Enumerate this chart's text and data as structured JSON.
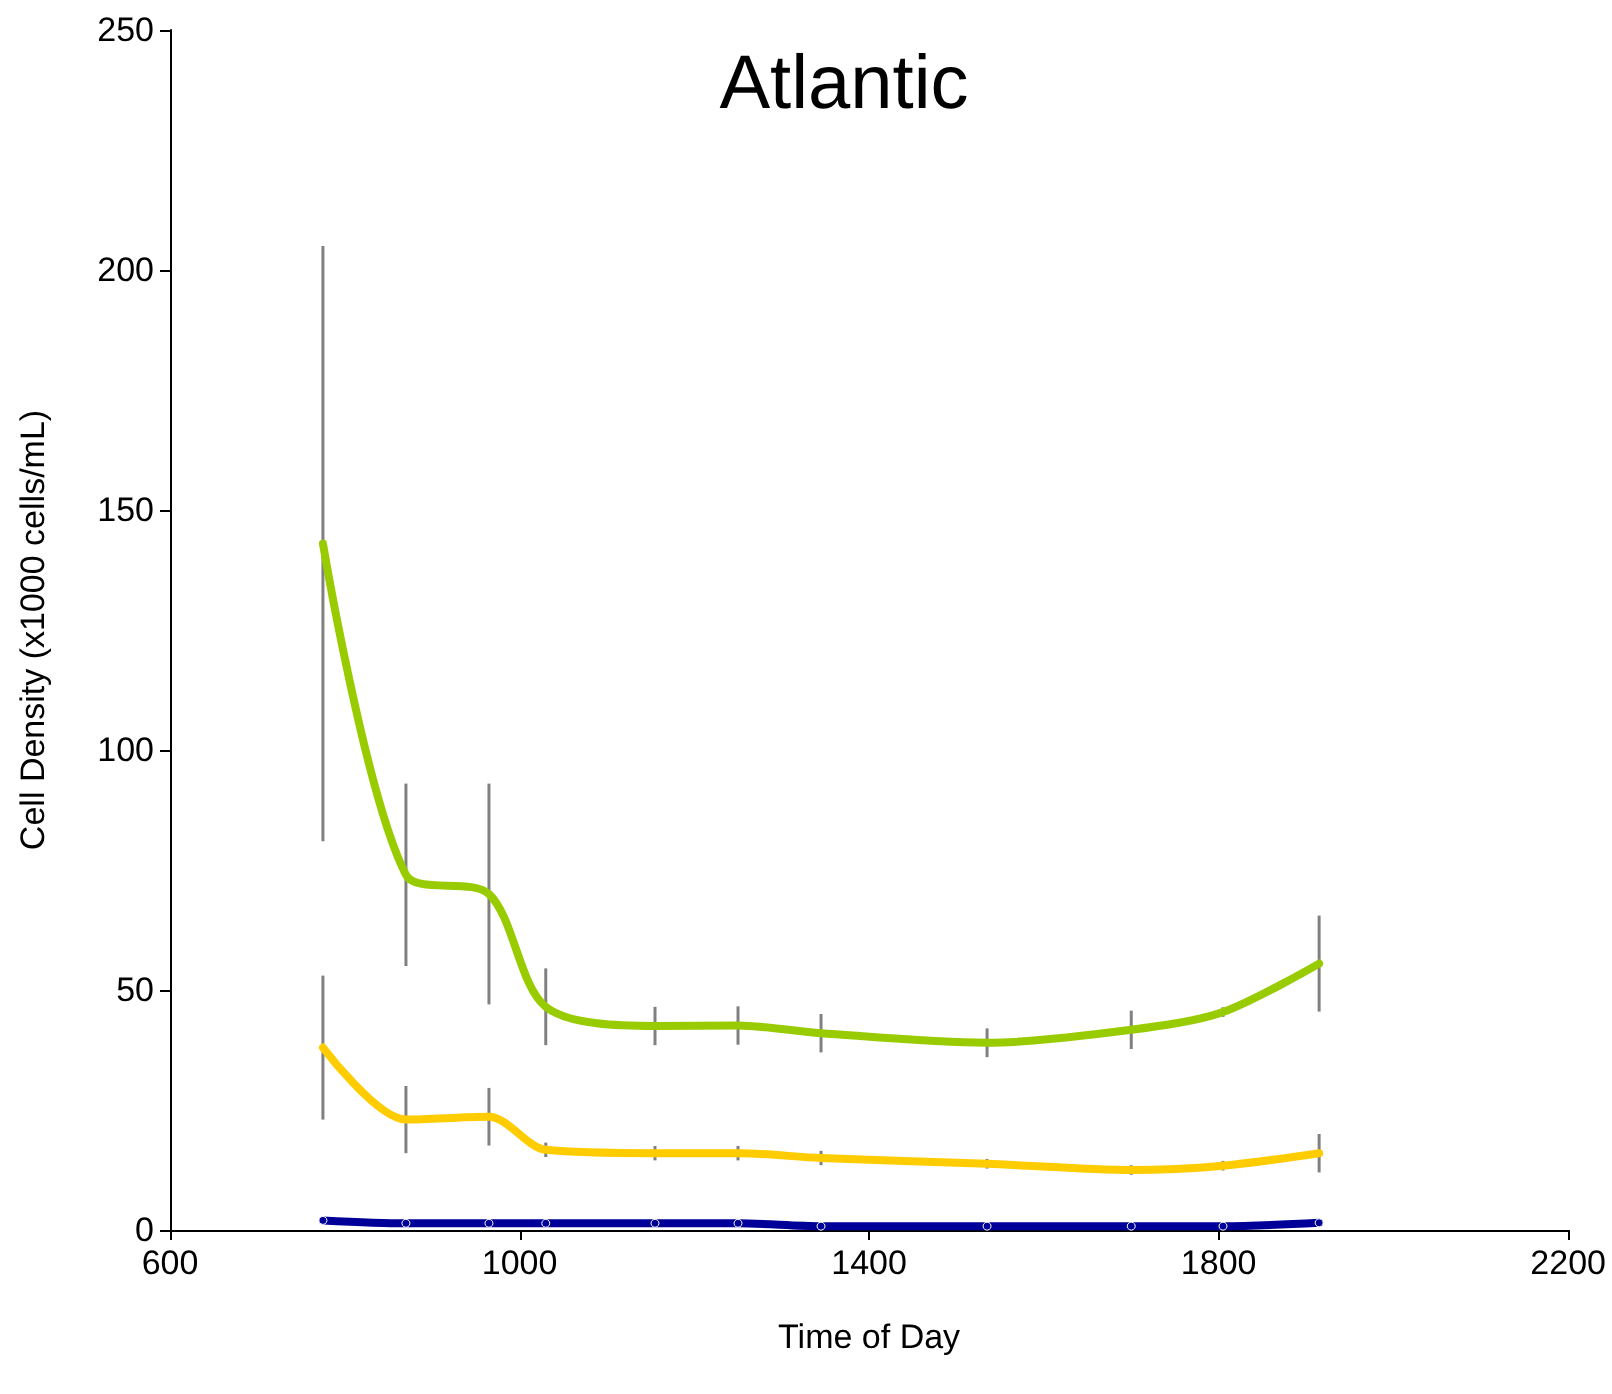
{
  "chart_data": {
    "type": "line",
    "title": "Atlantic",
    "xlabel": "Time of Day",
    "ylabel": "Cell Density (x1000 cells/mL)",
    "x": [
      775,
      870,
      965,
      1030,
      1155,
      1250,
      1345,
      1535,
      1700,
      1805,
      1915
    ],
    "series": [
      {
        "color": "#99cc00",
        "values": [
          143,
          74,
          70,
          46.5,
          42.5,
          42.6,
          41,
          39,
          41.7,
          45.4,
          55.5
        ],
        "errors": [
          62,
          19,
          23,
          8,
          4,
          4,
          4,
          3,
          4,
          1,
          10
        ]
      },
      {
        "color": "#ffcc00",
        "values": [
          38,
          23,
          23.6,
          16.7,
          16,
          16,
          15,
          13.8,
          12.5,
          13.4,
          16
        ],
        "errors": [
          15,
          7,
          6,
          1.5,
          1.5,
          1.5,
          1.5,
          1,
          1,
          1,
          4
        ]
      },
      {
        "color": "#000099",
        "values": [
          2,
          1.4,
          1.4,
          1.4,
          1.4,
          1.4,
          0.8,
          0.8,
          0.8,
          0.8,
          1.5
        ],
        "marker": "circle"
      }
    ],
    "xlim": [
      600,
      2200
    ],
    "xticks": [
      600,
      1000,
      1400,
      1800,
      2200
    ],
    "ylim": [
      0,
      250
    ],
    "yticks": [
      0,
      50,
      100,
      150,
      200,
      250
    ],
    "marker": "none",
    "line_style": "solid"
  }
}
